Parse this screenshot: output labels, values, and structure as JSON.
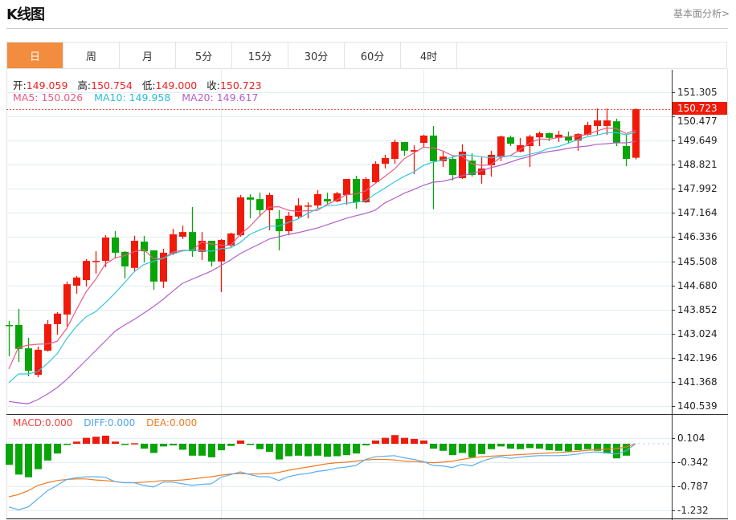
{
  "header": {
    "title": "K线图",
    "fundamental_link": "基本面分析>"
  },
  "tabs": [
    {
      "label": "日",
      "active": true
    },
    {
      "label": "周"
    },
    {
      "label": "月"
    },
    {
      "label": "5分"
    },
    {
      "label": "15分"
    },
    {
      "label": "30分"
    },
    {
      "label": "60分"
    },
    {
      "label": "4时"
    }
  ],
  "ohlc_info": {
    "open_label": "开:",
    "open": "149.059",
    "high_label": "高:",
    "high": "150.754",
    "low_label": "低:",
    "low": "149.000",
    "close_label": "收:",
    "close": "150.723"
  },
  "ma_info": {
    "ma5": "MA5: 150.026",
    "ma10": "MA10: 149.958",
    "ma20": "MA20: 149.617"
  },
  "macd_info": {
    "macd": "MACD:0.000",
    "diff": "DIFF:0.000",
    "dea": "DEA:0.000"
  },
  "last_price_tag": "150.723",
  "colors": {
    "up": "#f01a0a",
    "down": "#08a508",
    "ma5": "#ec5a84",
    "ma10": "#35c6dc",
    "ma20": "#b35fcc",
    "diff": "#5aaef2",
    "dea": "#f27a1e",
    "accent": "#f28c3e"
  },
  "chart_data": [
    {
      "type": "candlestick",
      "title": "K线图 日",
      "price_axis": {
        "ticks": [
          "151.305",
          "150.477",
          "149.649",
          "148.821",
          "147.992",
          "147.164",
          "146.336",
          "145.508",
          "144.680",
          "143.852",
          "143.024",
          "142.196",
          "141.368",
          "140.539"
        ],
        "range": [
          140.539,
          151.305
        ]
      },
      "last_price": 150.723,
      "candles": [
        [
          143.32,
          143.46,
          142.25,
          143.29
        ],
        [
          143.32,
          143.87,
          142.05,
          142.5
        ],
        [
          142.52,
          142.88,
          141.56,
          141.75
        ],
        [
          141.61,
          142.58,
          141.53,
          142.47
        ],
        [
          142.44,
          143.49,
          142.41,
          143.35
        ],
        [
          143.35,
          143.76,
          142.99,
          143.71
        ],
        [
          143.68,
          144.81,
          143.27,
          144.72
        ],
        [
          144.67,
          145.0,
          144.39,
          144.95
        ],
        [
          144.86,
          145.58,
          144.64,
          145.52
        ],
        [
          145.5,
          145.85,
          145.08,
          145.52
        ],
        [
          145.52,
          146.4,
          145.3,
          146.32
        ],
        [
          146.32,
          146.54,
          145.61,
          145.8
        ],
        [
          145.83,
          145.85,
          144.92,
          145.33
        ],
        [
          145.28,
          146.38,
          145.17,
          146.21
        ],
        [
          146.18,
          146.38,
          145.47,
          145.85
        ],
        [
          145.88,
          145.88,
          144.53,
          144.81
        ],
        [
          144.81,
          145.94,
          144.59,
          145.8
        ],
        [
          145.77,
          146.62,
          145.72,
          146.43
        ],
        [
          146.35,
          146.73,
          146.27,
          146.51
        ],
        [
          146.51,
          147.37,
          145.66,
          145.85
        ],
        [
          145.83,
          146.51,
          145.55,
          146.21
        ],
        [
          146.21,
          146.21,
          145.33,
          145.5
        ],
        [
          145.5,
          146.27,
          144.45,
          146.24
        ],
        [
          146.05,
          146.49,
          145.99,
          146.46
        ],
        [
          146.4,
          147.78,
          146.35,
          147.7
        ],
        [
          147.7,
          147.81,
          146.98,
          147.62
        ],
        [
          147.64,
          147.86,
          147.04,
          147.26
        ],
        [
          147.26,
          147.86,
          146.57,
          147.78
        ],
        [
          146.96,
          147.26,
          145.88,
          146.54
        ],
        [
          146.54,
          147.2,
          146.4,
          147.07
        ],
        [
          147.04,
          147.67,
          146.96,
          147.42
        ],
        [
          147.4,
          147.53,
          146.98,
          147.42
        ],
        [
          147.42,
          147.95,
          147.31,
          147.81
        ],
        [
          147.64,
          147.86,
          147.45,
          147.56
        ],
        [
          147.56,
          147.89,
          147.53,
          147.84
        ],
        [
          147.78,
          148.33,
          147.45,
          148.33
        ],
        [
          148.33,
          148.44,
          147.31,
          147.53
        ],
        [
          147.53,
          148.39,
          147.51,
          148.33
        ],
        [
          148.22,
          148.94,
          148.19,
          148.85
        ],
        [
          148.85,
          149.16,
          148.69,
          149.05
        ],
        [
          149.02,
          149.68,
          148.85,
          149.6
        ],
        [
          149.6,
          149.6,
          149.13,
          149.3
        ],
        [
          149.27,
          149.49,
          148.5,
          149.32
        ],
        [
          149.57,
          149.85,
          149.43,
          149.82
        ],
        [
          149.82,
          150.15,
          147.29,
          148.94
        ],
        [
          148.94,
          149.3,
          148.74,
          149.1
        ],
        [
          149.02,
          149.1,
          148.28,
          148.47
        ],
        [
          148.36,
          149.52,
          148.33,
          149.27
        ],
        [
          148.96,
          149.21,
          148.41,
          148.47
        ],
        [
          148.47,
          149.08,
          148.17,
          148.69
        ],
        [
          148.8,
          149.3,
          148.41,
          149.16
        ],
        [
          149.08,
          149.82,
          148.94,
          149.79
        ],
        [
          149.76,
          149.82,
          149.46,
          149.54
        ],
        [
          149.27,
          149.74,
          149.24,
          149.49
        ],
        [
          149.46,
          149.85,
          148.74,
          149.79
        ],
        [
          149.76,
          149.96,
          149.46,
          149.9
        ],
        [
          149.9,
          149.93,
          149.63,
          149.74
        ],
        [
          149.74,
          149.98,
          149.6,
          149.85
        ],
        [
          149.79,
          149.96,
          149.54,
          149.65
        ],
        [
          149.65,
          149.9,
          149.3,
          149.87
        ],
        [
          149.85,
          150.29,
          149.82,
          150.18
        ],
        [
          150.15,
          150.75,
          149.85,
          150.34
        ],
        [
          150.15,
          150.75,
          149.85,
          150.34
        ],
        [
          150.31,
          150.4,
          149.46,
          149.57
        ],
        [
          149.46,
          149.85,
          148.77,
          149.02
        ],
        [
          149.059,
          150.754,
          149.0,
          150.723
        ]
      ],
      "ma5_head": [
        141.81,
        142.55,
        142.63,
        142.66
      ],
      "ma10_head": [
        141.34,
        141.64,
        141.64,
        141.72,
        142.0,
        142.33,
        142.85,
        143.27,
        143.6
      ],
      "ma20": [
        140.7,
        140.65,
        140.62,
        140.76,
        140.95,
        141.17,
        141.45,
        141.78,
        142.11,
        142.44,
        142.77,
        143.1,
        143.32,
        143.51,
        143.73,
        143.95,
        144.2,
        144.48,
        144.75,
        144.89,
        145.03,
        145.17,
        145.36,
        145.55,
        145.77,
        145.94,
        146.1,
        146.27,
        146.35,
        146.43,
        146.49,
        146.57,
        146.65,
        146.76,
        146.87,
        146.98,
        147.07,
        147.15,
        147.26,
        147.51,
        147.67,
        147.84,
        147.97,
        148.11,
        148.22,
        148.25,
        148.33,
        148.44,
        148.52,
        148.61,
        148.72,
        148.8,
        148.91,
        149.02,
        149.1,
        149.21,
        149.27,
        149.32,
        149.38,
        149.43,
        149.46,
        149.52,
        149.54,
        149.57,
        149.57,
        149.617
      ]
    },
    {
      "type": "bar+line",
      "title": "MACD",
      "y_axis": {
        "ticks": [
          "0.104",
          "-0.342",
          "-0.787",
          "-1.232"
        ],
        "range": [
          -1.232,
          0.104
        ]
      },
      "macd": [
        -0.39,
        -0.57,
        -0.62,
        -0.47,
        -0.31,
        -0.18,
        -0.02,
        0.04,
        0.11,
        0.13,
        0.15,
        0.04,
        -0.01,
        0.01,
        -0.09,
        -0.17,
        -0.05,
        -0.03,
        -0.11,
        -0.22,
        -0.22,
        -0.25,
        -0.12,
        -0.04,
        0.06,
        -0.01,
        -0.1,
        -0.15,
        -0.29,
        -0.23,
        -0.22,
        -0.23,
        -0.22,
        -0.24,
        -0.23,
        -0.21,
        -0.18,
        -0.03,
        0.06,
        0.11,
        0.16,
        0.11,
        0.09,
        0.06,
        -0.09,
        -0.13,
        -0.21,
        -0.17,
        -0.25,
        -0.19,
        -0.1,
        -0.05,
        -0.09,
        -0.1,
        -0.08,
        -0.09,
        -0.12,
        -0.13,
        -0.14,
        -0.12,
        -0.1,
        -0.13,
        -0.18,
        -0.27,
        -0.22,
        0.0
      ],
      "diff": [
        -1.17,
        -1.22,
        -1.17,
        -1.02,
        -0.87,
        -0.77,
        -0.66,
        -0.63,
        -0.61,
        -0.61,
        -0.62,
        -0.7,
        -0.72,
        -0.72,
        -0.77,
        -0.8,
        -0.71,
        -0.71,
        -0.74,
        -0.77,
        -0.75,
        -0.74,
        -0.62,
        -0.57,
        -0.52,
        -0.57,
        -0.61,
        -0.61,
        -0.68,
        -0.61,
        -0.57,
        -0.55,
        -0.51,
        -0.49,
        -0.45,
        -0.43,
        -0.4,
        -0.29,
        -0.24,
        -0.23,
        -0.22,
        -0.26,
        -0.29,
        -0.33,
        -0.4,
        -0.41,
        -0.44,
        -0.38,
        -0.41,
        -0.33,
        -0.27,
        -0.24,
        -0.27,
        -0.25,
        -0.23,
        -0.22,
        -0.22,
        -0.22,
        -0.21,
        -0.19,
        -0.16,
        -0.15,
        -0.17,
        -0.19,
        -0.13,
        0.0
      ],
      "dea": [
        -0.98,
        -0.94,
        -0.87,
        -0.77,
        -0.72,
        -0.68,
        -0.66,
        -0.65,
        -0.65,
        -0.67,
        -0.68,
        -0.7,
        -0.72,
        -0.72,
        -0.71,
        -0.7,
        -0.68,
        -0.68,
        -0.67,
        -0.65,
        -0.63,
        -0.61,
        -0.58,
        -0.56,
        -0.55,
        -0.56,
        -0.56,
        -0.55,
        -0.53,
        -0.49,
        -0.46,
        -0.43,
        -0.4,
        -0.37,
        -0.35,
        -0.34,
        -0.32,
        -0.3,
        -0.29,
        -0.29,
        -0.3,
        -0.32,
        -0.33,
        -0.34,
        -0.35,
        -0.34,
        -0.32,
        -0.29,
        -0.26,
        -0.24,
        -0.23,
        -0.22,
        -0.21,
        -0.2,
        -0.19,
        -0.18,
        -0.17,
        -0.16,
        -0.15,
        -0.14,
        -0.12,
        -0.11,
        -0.1,
        -0.09,
        -0.06,
        0.0
      ]
    }
  ]
}
